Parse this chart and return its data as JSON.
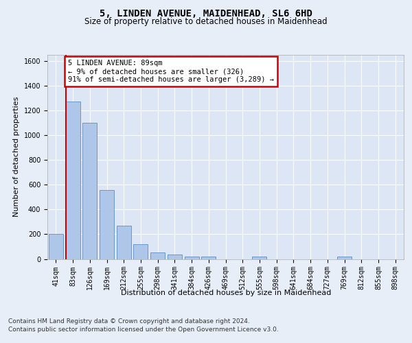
{
  "title": "5, LINDEN AVENUE, MAIDENHEAD, SL6 6HD",
  "subtitle": "Size of property relative to detached houses in Maidenhead",
  "xlabel": "Distribution of detached houses by size in Maidenhead",
  "ylabel": "Number of detached properties",
  "footer_line1": "Contains HM Land Registry data © Crown copyright and database right 2024.",
  "footer_line2": "Contains public sector information licensed under the Open Government Licence v3.0.",
  "bar_labels": [
    "41sqm",
    "83sqm",
    "126sqm",
    "169sqm",
    "212sqm",
    "255sqm",
    "298sqm",
    "341sqm",
    "384sqm",
    "426sqm",
    "469sqm",
    "512sqm",
    "555sqm",
    "598sqm",
    "641sqm",
    "684sqm",
    "727sqm",
    "769sqm",
    "812sqm",
    "855sqm",
    "898sqm"
  ],
  "bar_values": [
    200,
    1275,
    1100,
    555,
    270,
    120,
    55,
    35,
    22,
    18,
    0,
    0,
    18,
    0,
    0,
    0,
    0,
    22,
    0,
    0,
    0
  ],
  "bar_color": "#aec6e8",
  "bar_edge_color": "#5b8ec4",
  "vline_color": "#cc0000",
  "vline_bin_index": 1,
  "annotation_text": "5 LINDEN AVENUE: 89sqm\n← 9% of detached houses are smaller (326)\n91% of semi-detached houses are larger (3,289) →",
  "annotation_box_color": "#cc0000",
  "ylim": [
    0,
    1650
  ],
  "yticks": [
    0,
    200,
    400,
    600,
    800,
    1000,
    1200,
    1400,
    1600
  ],
  "bg_color": "#e8eef7",
  "plot_bg_color": "#dce6f5",
  "grid_color": "#ffffff",
  "title_fontsize": 10,
  "subtitle_fontsize": 8.5,
  "axis_label_fontsize": 8,
  "ylabel_fontsize": 8,
  "tick_fontsize": 7,
  "footer_fontsize": 6.5,
  "annotation_fontsize": 7.5
}
